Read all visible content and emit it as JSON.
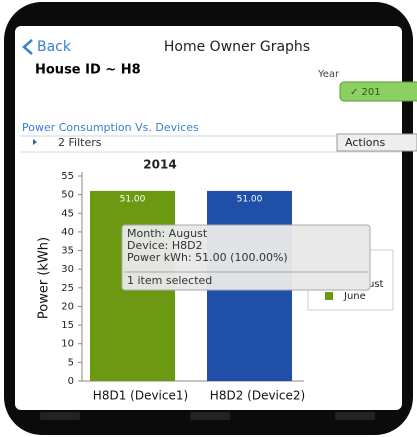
{
  "header": {
    "back": "Back",
    "title": "Home Owner Graphs"
  },
  "house_id": "House ID ~ H8",
  "year_label": "Year",
  "year_button": "✓ 201",
  "section_title": "Power Consumption Vs. Devices",
  "filters": "2 Filters",
  "actions": "Actions",
  "chart_data": {
    "type": "bar",
    "title": "2014",
    "y_label": "Power (kWh)",
    "categories": [
      "H8D1 (Device1)",
      "H8D2 (Device2)"
    ],
    "values": [
      51,
      51
    ],
    "value_labels": [
      "51.00",
      "51.00"
    ],
    "colors": [
      "#6b9a12",
      "#1f4fa6"
    ],
    "ylim": [
      0,
      55
    ],
    "yticks": [
      0,
      5,
      10,
      15,
      20,
      25,
      30,
      35,
      40,
      45,
      50,
      55
    ],
    "legend": [
      {
        "name": "ust"
      },
      {
        "name": "June",
        "color": "#6b9a12"
      }
    ]
  },
  "tooltip": {
    "lines": [
      "Month: August",
      "Device: H8D2",
      "Power kWh: 51.00 (100.00%)"
    ],
    "footer": "1 item selected"
  }
}
